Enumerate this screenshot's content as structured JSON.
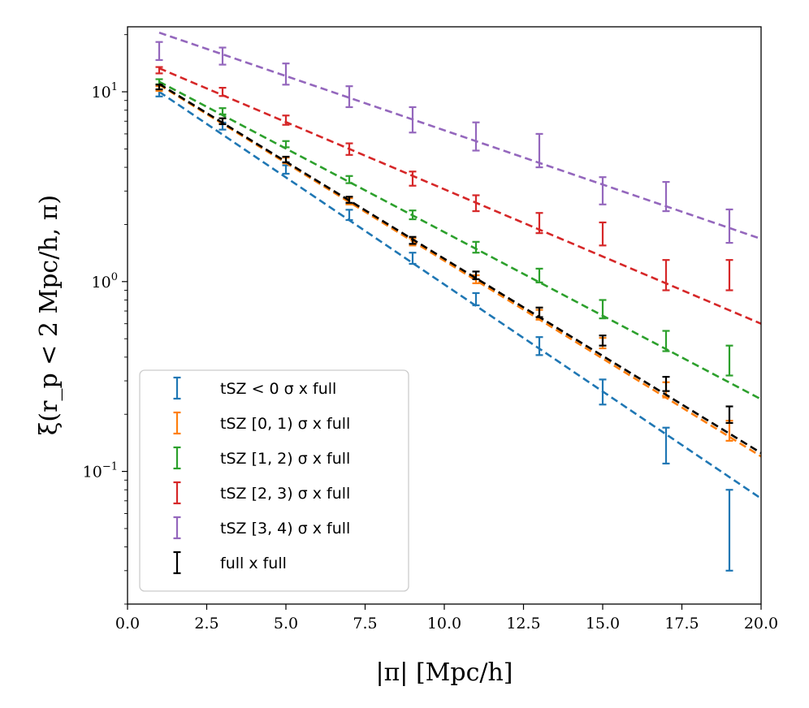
{
  "chart_data": {
    "type": "scatter",
    "xlabel": "|π| [Mpc/h]",
    "ylabel": "ξ(r_p < 2 Mpc/h, π)",
    "xlim": [
      0.0,
      20.0
    ],
    "ylim": [
      0.02,
      22.0
    ],
    "yscale": "log",
    "grid": false,
    "legend_position": "lower-left",
    "x_ticks": [
      "0.0",
      "2.5",
      "5.0",
      "7.5",
      "10.0",
      "12.5",
      "15.0",
      "17.5",
      "20.0"
    ],
    "y_ticks": [
      {
        "value": 0.1,
        "base": "10",
        "exp": "−1"
      },
      {
        "value": 1,
        "base": "10",
        "exp": "0"
      },
      {
        "value": 10,
        "base": "10",
        "exp": "1"
      }
    ],
    "series": [
      {
        "name": "tSZ < 0 σ x full",
        "color": "#1f77b4",
        "x": [
          1,
          3,
          5,
          7,
          9,
          11,
          13,
          15,
          17,
          19
        ],
        "y": [
          9.8,
          6.6,
          3.9,
          2.25,
          1.33,
          0.81,
          0.46,
          0.265,
          0.14,
          0.055
        ],
        "err": [
          0.35,
          0.28,
          0.2,
          0.14,
          0.09,
          0.06,
          0.05,
          0.04,
          0.03,
          0.025
        ],
        "fit": [
          [
            1,
            10.0
          ],
          [
            20,
            0.072
          ]
        ]
      },
      {
        "name": "tSZ [0, 1) σ x full",
        "color": "#ff7f0e",
        "x": [
          1,
          3,
          5,
          7,
          9,
          11,
          13,
          15,
          17,
          19
        ],
        "y": [
          10.4,
          7.0,
          4.35,
          2.65,
          1.62,
          1.03,
          0.67,
          0.475,
          0.27,
          0.165
        ],
        "err": [
          0.3,
          0.25,
          0.15,
          0.1,
          0.07,
          0.05,
          0.04,
          0.03,
          0.025,
          0.02
        ],
        "fit": [
          [
            1,
            10.9
          ],
          [
            20,
            0.12
          ]
        ]
      },
      {
        "name": "tSZ [1, 2) σ x full",
        "color": "#2ca02c",
        "x": [
          1,
          3,
          5,
          7,
          9,
          11,
          13,
          15,
          17,
          19
        ],
        "y": [
          11.3,
          7.9,
          5.3,
          3.45,
          2.25,
          1.52,
          1.08,
          0.72,
          0.49,
          0.39
        ],
        "err": [
          0.35,
          0.3,
          0.2,
          0.15,
          0.12,
          0.1,
          0.09,
          0.08,
          0.06,
          0.07
        ],
        "fit": [
          [
            1,
            11.3
          ],
          [
            20,
            0.24
          ]
        ]
      },
      {
        "name": "tSZ [2, 3) σ x full",
        "color": "#d62728",
        "x": [
          1,
          3,
          5,
          7,
          9,
          11,
          13,
          15,
          17,
          19
        ],
        "y": [
          13.0,
          10.0,
          7.1,
          5.0,
          3.5,
          2.6,
          2.05,
          1.8,
          1.1,
          1.1
        ],
        "err": [
          0.5,
          0.5,
          0.4,
          0.35,
          0.3,
          0.25,
          0.25,
          0.25,
          0.2,
          0.2
        ],
        "fit": [
          [
            1,
            13.3
          ],
          [
            20,
            0.6
          ]
        ]
      },
      {
        "name": "tSZ [3, 4) σ x full",
        "color": "#9467bd",
        "x": [
          1,
          3,
          5,
          7,
          9,
          11,
          13,
          15,
          17,
          19
        ],
        "y": [
          16.5,
          15.5,
          12.5,
          9.5,
          7.2,
          5.9,
          5.0,
          3.05,
          2.85,
          2.0
        ],
        "err": [
          1.8,
          1.6,
          1.6,
          1.2,
          1.1,
          1.0,
          1.0,
          0.5,
          0.5,
          0.4
        ],
        "fit": [
          [
            1,
            20.5
          ],
          [
            20,
            1.68
          ]
        ]
      },
      {
        "name": "full x full",
        "color": "#000000",
        "x": [
          1,
          3,
          5,
          7,
          9,
          11,
          13,
          15,
          17,
          19
        ],
        "y": [
          10.6,
          7.0,
          4.4,
          2.7,
          1.65,
          1.08,
          0.69,
          0.49,
          0.29,
          0.2
        ],
        "err": [
          0.3,
          0.25,
          0.15,
          0.1,
          0.07,
          0.05,
          0.04,
          0.03,
          0.025,
          0.02
        ],
        "fit": [
          [
            1,
            11.0
          ],
          [
            20,
            0.125
          ]
        ]
      }
    ]
  }
}
